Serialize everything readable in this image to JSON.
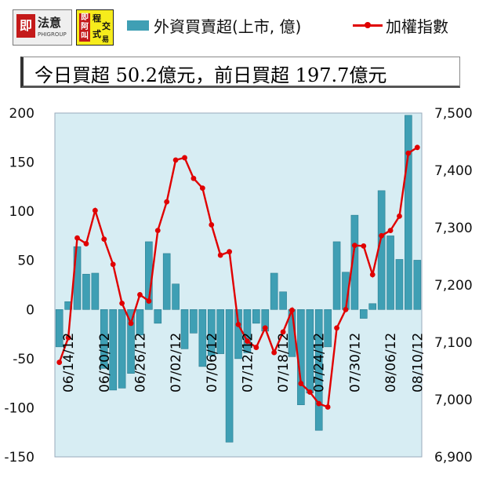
{
  "logos": {
    "logo1_name": "法意",
    "logo1_sub": "PHIGROUP",
    "logo1_seal": "即",
    "logo2_seal": "即阿叫",
    "logo2_chars": [
      "程",
      "式",
      "交",
      "易"
    ]
  },
  "summary_text": "今日買超 50.2億元，前日買超 197.7億元",
  "colors": {
    "bar": "#3f9fb4",
    "line": "#e00000",
    "plot_bg": "#d7edf3"
  },
  "chart_data": {
    "type": "bar+line",
    "series": [
      {
        "name": "外資買賣超(上市, 億)",
        "type": "bar",
        "axis": "left",
        "values": [
          -38,
          8,
          64,
          36,
          37,
          -60,
          -82,
          -80,
          -65,
          -26,
          69,
          -14,
          57,
          26,
          -40,
          -24,
          -58,
          -47,
          -45,
          -135,
          -50,
          -44,
          -14,
          -22,
          37,
          18,
          -48,
          -97,
          -85,
          -123,
          -38,
          69,
          38,
          96,
          -9,
          6,
          121,
          75,
          51,
          197.7,
          50.2
        ]
      },
      {
        "name": "加權指數",
        "type": "line",
        "axis": "right",
        "values": [
          7065,
          7108,
          7282,
          7272,
          7330,
          7280,
          7236,
          7168,
          7133,
          7183,
          7172,
          7295,
          7345,
          7418,
          7422,
          7386,
          7369,
          7305,
          7252,
          7258,
          7131,
          7102,
          7091,
          7125,
          7082,
          7118,
          7156,
          7028,
          7013,
          6993,
          6987,
          7125,
          7157,
          7269,
          7268,
          7218,
          7286,
          7295,
          7320,
          7430,
          7440
        ]
      }
    ],
    "x_tick_labels": [
      "06/14/12",
      "06/20/12",
      "06/26/12",
      "07/02/12",
      "07/06/12",
      "07/12/12",
      "07/18/12",
      "07/24/12",
      "07/30/12",
      "08/06/12",
      "08/10/12"
    ],
    "y_left": {
      "min": -150,
      "max": 200,
      "ticks": [
        "200",
        "150",
        "100",
        "50",
        "0",
        "-50",
        "-100",
        "-150"
      ]
    },
    "y_right": {
      "min": 6900,
      "max": 7500,
      "ticks": [
        "7,500",
        "7,400",
        "7,300",
        "7,200",
        "7,100",
        "7,000",
        "6,900"
      ]
    },
    "legend": {
      "bar_label": "外資買賣超(上市, 億)",
      "line_label": "加權指數",
      "position": "top"
    },
    "grid": false
  }
}
